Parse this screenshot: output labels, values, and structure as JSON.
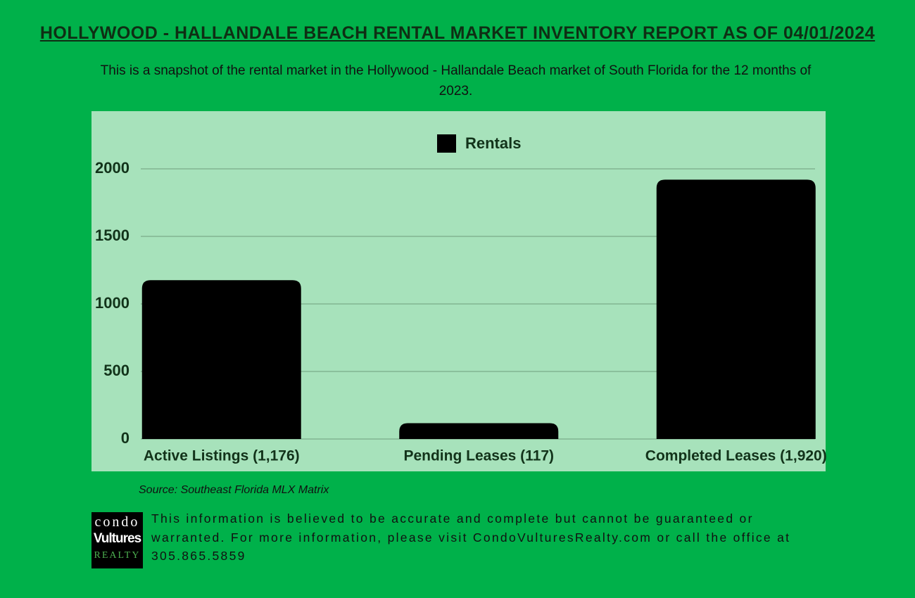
{
  "chart_data": {
    "type": "bar",
    "title": "HOLLYWOOD - HALLANDALE BEACH RENTAL MARKET INVENTORY REPORT AS OF 04/01/2024",
    "subtitle": "This is a snapshot of the rental market in the Hollywood - Hallandale Beach market of South Florida for the 12 months of 2023.",
    "categories": [
      "Active Listings (1,176)",
      "Pending Leases (117)",
      "Completed Leases (1,920)"
    ],
    "series": [
      {
        "name": "Rentals",
        "color": "#000000",
        "values": [
          1176,
          117,
          1920
        ]
      }
    ],
    "ylim": [
      0,
      2000
    ],
    "yticks": [
      0,
      500,
      1000,
      1500,
      2000
    ],
    "grid": true,
    "legend": "top",
    "source": "Source: Southeast Florida MLX Matrix"
  },
  "footer": {
    "disclaimer": "This information is believed to be accurate and complete but cannot be guaranteed or warranted. For more information, please visit CondoVulturesRealty.com or call the office at 305.865.5859",
    "logo": {
      "line1": "condo",
      "line2": "Vultures",
      "line3": "REALTY"
    }
  }
}
